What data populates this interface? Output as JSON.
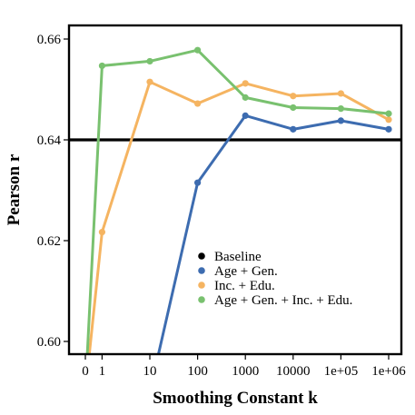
{
  "chart_data": {
    "type": "line",
    "title": "",
    "xlabel": "Smoothing Constant k",
    "ylabel": "Pearson r",
    "x_ticks": [
      "0",
      "1",
      "10",
      "100",
      "1000",
      "10000",
      "1e+05",
      "1e+06"
    ],
    "x_tick_values": [
      0,
      1,
      10,
      100,
      1000,
      10000,
      100000,
      1000000
    ],
    "y_ticks": [
      "0.60",
      "0.62",
      "0.64",
      "0.66"
    ],
    "y_tick_values": [
      0.6,
      0.62,
      0.64,
      0.66
    ],
    "ylim": [
      0.5975,
      0.6625
    ],
    "x_scale": "pseudo-log",
    "grid": false,
    "legend_position": "lower-center",
    "baseline": {
      "name": "Baseline",
      "value": 0.64,
      "color": "#000000"
    },
    "series": [
      {
        "name": "Age + Gen.",
        "color": "#3d6cb0",
        "x": [
          10,
          100,
          1000,
          10000,
          100000,
          1000000
        ],
        "values": [
          0.59,
          0.6315,
          0.6448,
          0.6421,
          0.6438,
          0.6421
        ]
      },
      {
        "name": "Inc. + Edu.",
        "color": "#f5b461",
        "x": [
          0,
          1,
          10,
          100,
          1000,
          10000,
          100000,
          1000000
        ],
        "values": [
          0.59,
          0.6217,
          0.6515,
          0.6472,
          0.6512,
          0.6487,
          0.6492,
          0.644
        ]
      },
      {
        "name": "Age + Gen. + Inc. + Edu.",
        "color": "#79c16f",
        "x": [
          0,
          1,
          10,
          100,
          1000,
          10000,
          100000,
          1000000
        ],
        "values": [
          0.59,
          0.6547,
          0.6556,
          0.6578,
          0.6484,
          0.6464,
          0.6462,
          0.6452
        ]
      }
    ]
  }
}
